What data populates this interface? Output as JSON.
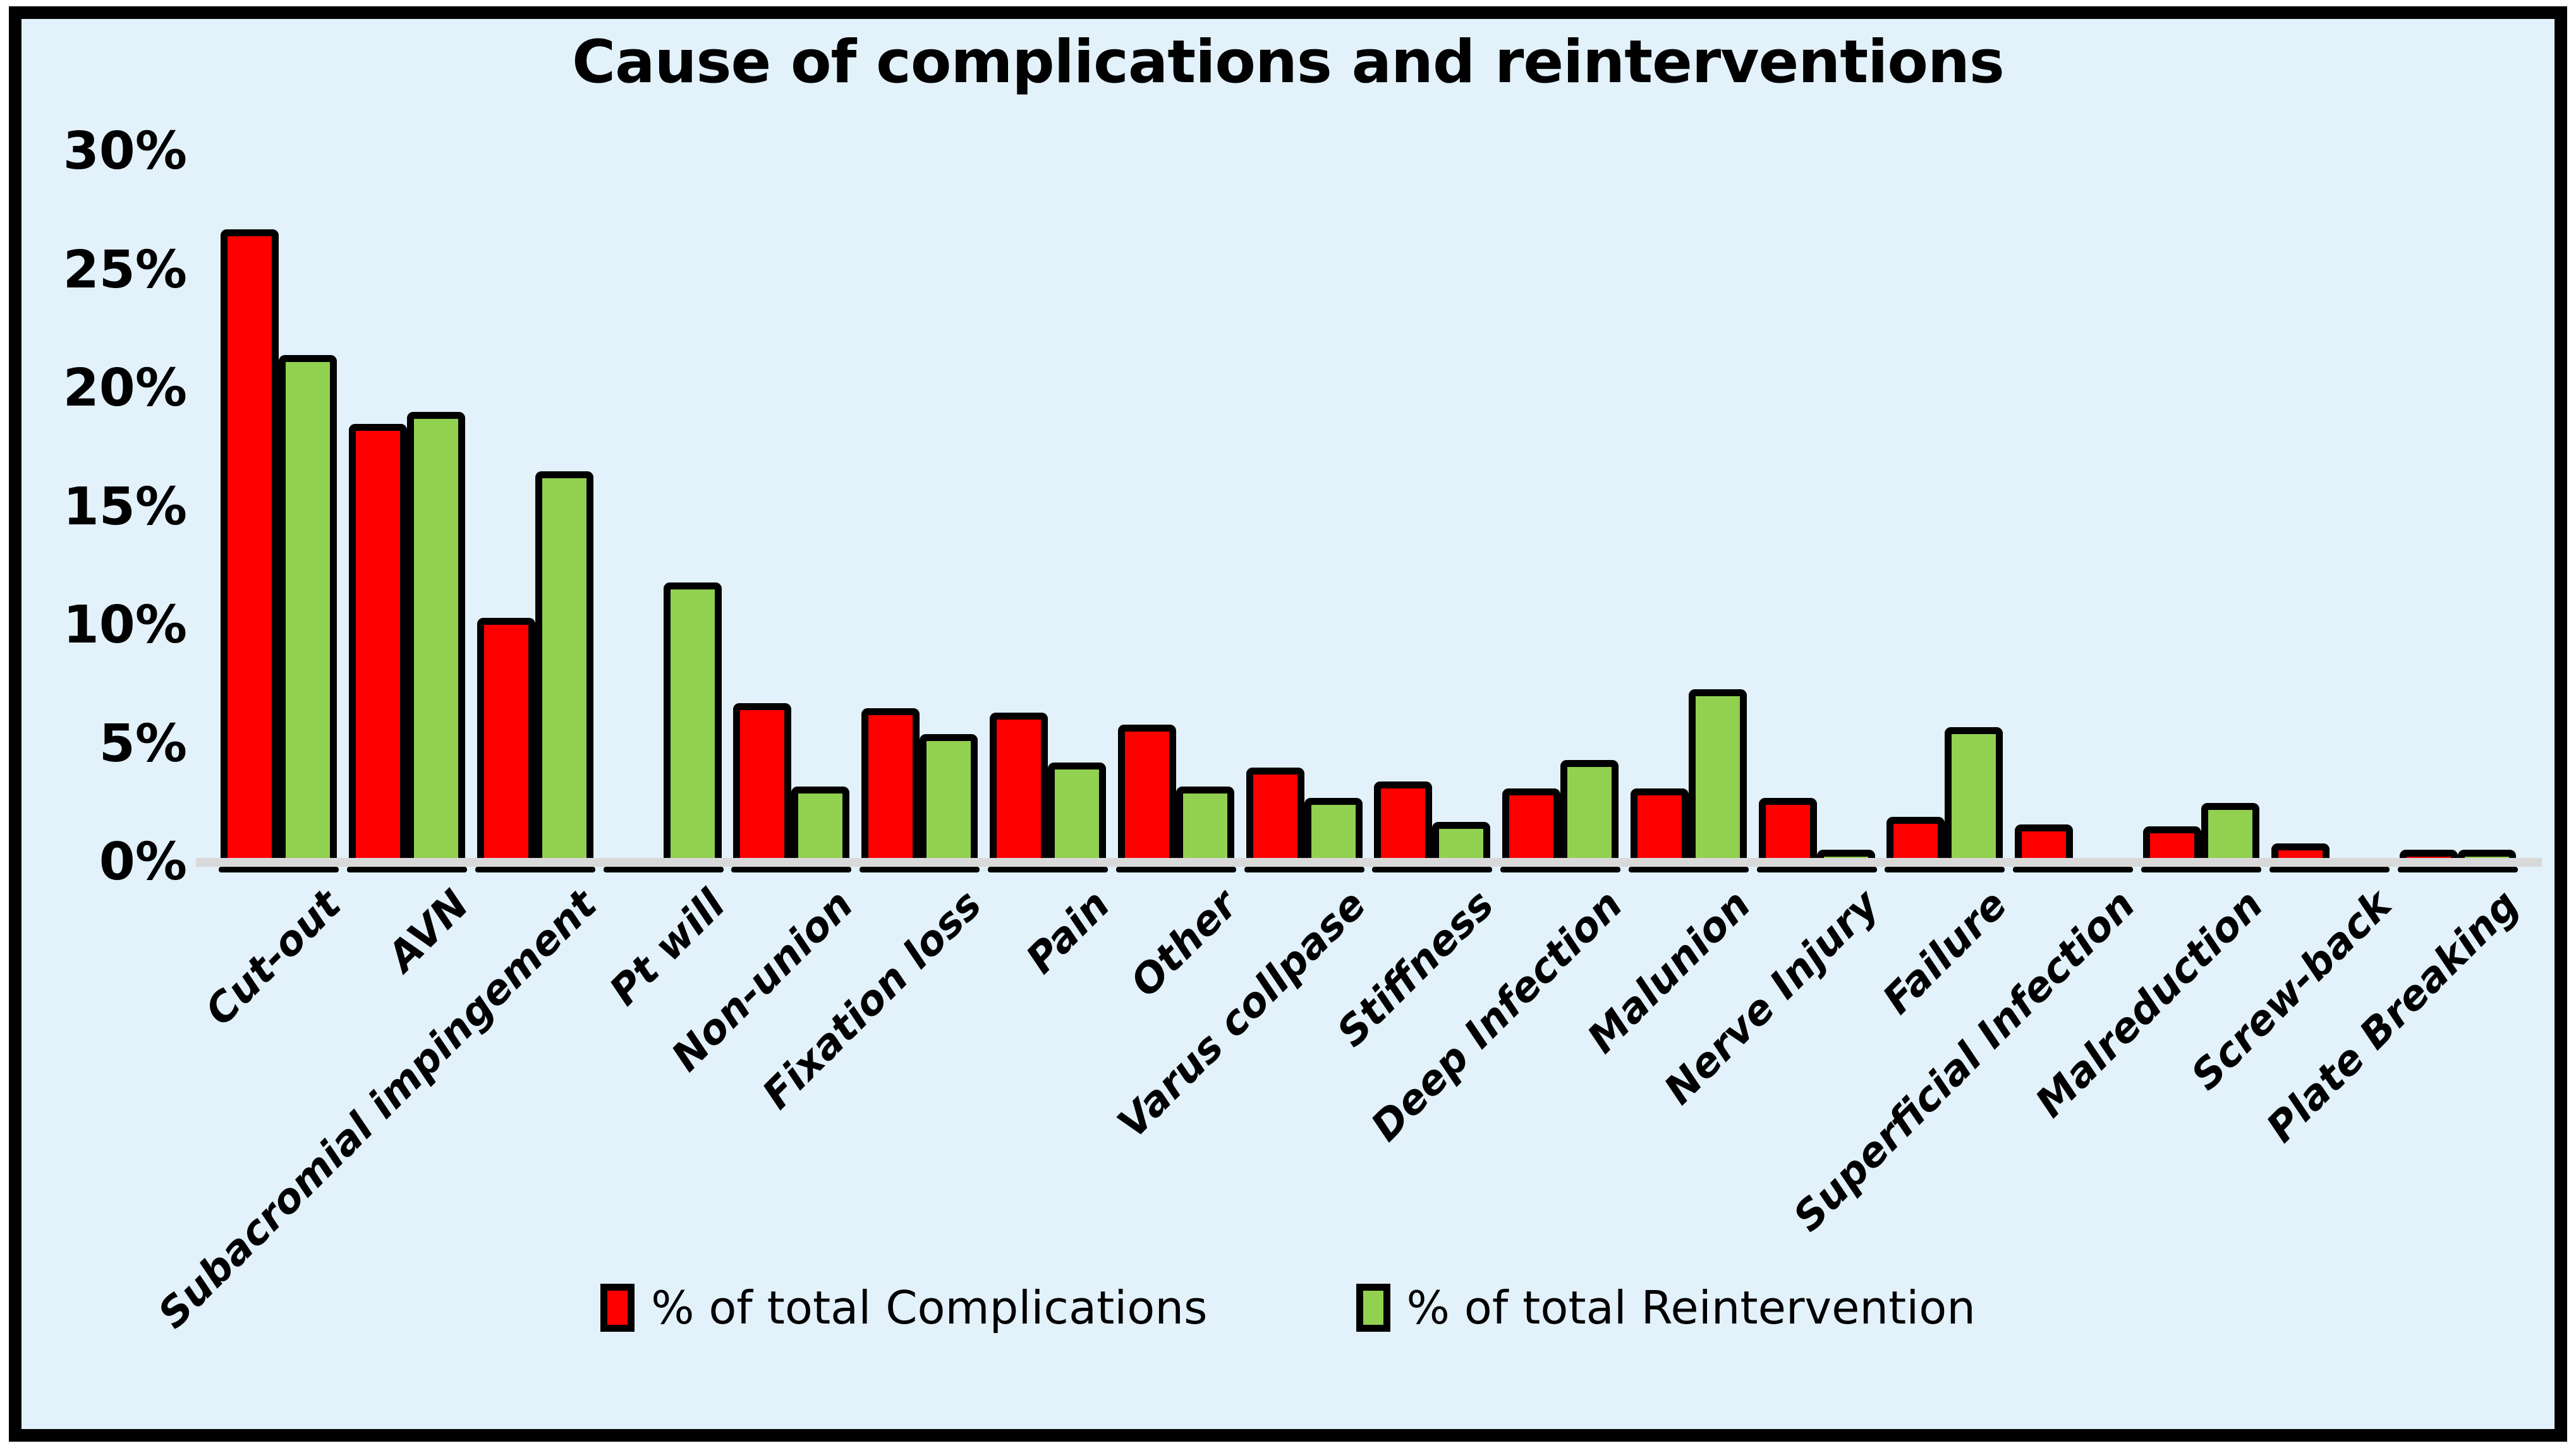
{
  "title": "Cause of complications and reinterventions",
  "y_axis": {
    "tick_labels": [
      "30%",
      "25%",
      "20%",
      "15%",
      "10%",
      "5%",
      "0%"
    ],
    "max_value": 30,
    "tick_step": 5
  },
  "legend": {
    "items": [
      {
        "label": "% of total Complications",
        "color": "#FF0000"
      },
      {
        "label": "% of total Reintervention",
        "color": "#92D050"
      }
    ]
  },
  "colors": {
    "complications": "#FF0000",
    "reintervention": "#92D050",
    "background": "#E2F1FA",
    "frame_border": "#000000",
    "baseline": "#D9D9D9"
  },
  "chart_data": {
    "type": "bar",
    "title": "Cause of complications and reinterventions",
    "categories": [
      "Cut-out",
      "AVN",
      "Subacromial impingement",
      "Pt will",
      "Non-union",
      "Fixation loss",
      "Pain",
      "Other",
      "Varus collpase",
      "Stiffness",
      "Deep Infection",
      "Malunion",
      "Nerve Injury",
      "Failure",
      "Superficial Infection",
      "Malreduction",
      "Screw-back",
      "Plate Breaking"
    ],
    "series": [
      {
        "name": "% of total Complications",
        "color": "#FF0000",
        "values": [
          26.5,
          18.3,
          10.1,
          0,
          6.5,
          6.3,
          6.1,
          5.6,
          3.8,
          3.2,
          2.9,
          2.9,
          2.5,
          1.7,
          1.4,
          1.3,
          0.6,
          0.3
        ]
      },
      {
        "name": "% of total Reintervention",
        "color": "#92D050",
        "values": [
          21.2,
          18.8,
          16.3,
          11.6,
          3.0,
          5.2,
          4.0,
          3.0,
          2.5,
          1.5,
          4.1,
          7.1,
          0.3,
          5.5,
          0,
          2.3,
          0,
          0.3
        ]
      }
    ],
    "ylim": [
      0,
      30
    ],
    "xlabel": "",
    "ylabel": "",
    "grid": false,
    "legend_position": "bottom"
  }
}
